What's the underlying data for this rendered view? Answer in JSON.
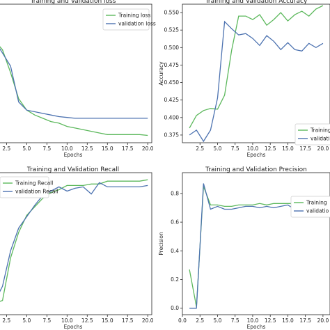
{
  "chart_data": [
    {
      "type": "line",
      "title": "Training and Validation loss",
      "xlabel": "Epochs",
      "ylabel": "",
      "xlim": [
        1,
        20.5
      ],
      "ylim": [
        0.15,
        1.0
      ],
      "xticks": [
        2.5,
        5.0,
        7.5,
        10.0,
        12.5,
        15.0,
        17.5,
        20.0
      ],
      "xtick_labels": [
        "2.5",
        "5.0",
        "7.5",
        "10.0",
        "12.5",
        "15.0",
        "17.5",
        "20.0"
      ],
      "yticks": [],
      "ytick_labels": [],
      "legend_position": "top-right",
      "series": [
        {
          "name": "Training loss",
          "color": "#5cb85c",
          "x": [
            1,
            2,
            3,
            4,
            5,
            6,
            7,
            8,
            9,
            10,
            11,
            12,
            13,
            14,
            15,
            16,
            17,
            18,
            19,
            20
          ],
          "y": [
            0.78,
            0.72,
            0.58,
            0.42,
            0.35,
            0.32,
            0.3,
            0.28,
            0.27,
            0.25,
            0.24,
            0.23,
            0.22,
            0.21,
            0.2,
            0.2,
            0.2,
            0.2,
            0.2,
            0.195
          ]
        },
        {
          "name": "validation loss",
          "color": "#4c72b0",
          "x": [
            1,
            2,
            3,
            4,
            5,
            6,
            7,
            8,
            9,
            10,
            11,
            12,
            13,
            14,
            15,
            16,
            17,
            18,
            19,
            20
          ],
          "y": [
            0.78,
            0.7,
            0.62,
            0.4,
            0.35,
            0.34,
            0.33,
            0.32,
            0.31,
            0.305,
            0.3,
            0.3,
            0.3,
            0.3,
            0.3,
            0.3,
            0.3,
            0.3,
            0.3,
            0.3
          ]
        }
      ]
    },
    {
      "type": "line",
      "title": "Training and Validation Accuracy",
      "xlabel": "Epochs",
      "ylabel": "Accuracy",
      "xlim": [
        0,
        21
      ],
      "ylim": [
        0.364,
        0.562
      ],
      "xticks": [
        2.5,
        5.0,
        7.5,
        10.0,
        12.5,
        15.0,
        17.5,
        20.0
      ],
      "xtick_labels": [
        "2.5",
        "5.0",
        "7.5",
        "10.0",
        "12.5",
        "15.0",
        "17.5",
        "20.0"
      ],
      "yticks": [
        0.375,
        0.4,
        0.425,
        0.45,
        0.475,
        0.5,
        0.525,
        0.55
      ],
      "ytick_labels": [
        "0.375",
        "0.400",
        "0.425",
        "0.450",
        "0.475",
        "0.500",
        "0.525",
        "0.550"
      ],
      "legend_position": "bottom-right",
      "series": [
        {
          "name": "Training",
          "color": "#5cb85c",
          "x": [
            1,
            2,
            3,
            4,
            5,
            6,
            7,
            8,
            9,
            10,
            11,
            12,
            13,
            14,
            15,
            16,
            17,
            18,
            19,
            20
          ],
          "y": [
            0.385,
            0.403,
            0.41,
            0.413,
            0.412,
            0.432,
            0.496,
            0.545,
            0.545,
            0.54,
            0.547,
            0.532,
            0.54,
            0.55,
            0.538,
            0.547,
            0.552,
            0.545,
            0.555,
            0.56
          ]
        },
        {
          "name": "validatio",
          "color": "#4c72b0",
          "x": [
            1,
            2,
            3,
            4,
            5,
            6,
            7,
            8,
            9,
            10,
            11,
            12,
            13,
            14,
            15,
            16,
            17,
            18,
            19,
            20
          ],
          "y": [
            0.375,
            0.382,
            0.366,
            0.382,
            0.428,
            0.537,
            0.527,
            0.518,
            0.52,
            0.513,
            0.503,
            0.517,
            0.509,
            0.497,
            0.507,
            0.497,
            0.495,
            0.506,
            0.5,
            0.506
          ]
        }
      ]
    },
    {
      "type": "line",
      "title": "Training and Validation Recall",
      "xlabel": "Epochs",
      "ylabel": "",
      "xlim": [
        1,
        20.5
      ],
      "ylim": [
        0.0,
        1.0
      ],
      "xticks": [
        2.5,
        5.0,
        7.5,
        10.0,
        12.5,
        15.0,
        17.5,
        20.0
      ],
      "xtick_labels": [
        "2.5",
        "5.0",
        "7.5",
        "10.0",
        "12.5",
        "15.0",
        "17.5",
        "20.0"
      ],
      "yticks": [],
      "ytick_labels": [],
      "legend_position": "top-left",
      "series": [
        {
          "name": "Training Recall",
          "color": "#5cb85c",
          "x": [
            1,
            2,
            3,
            4,
            5,
            6,
            7,
            8,
            9,
            10,
            11,
            12,
            13,
            14,
            15,
            16,
            17,
            18,
            19,
            20
          ],
          "y": [
            0.08,
            0.1,
            0.4,
            0.58,
            0.7,
            0.76,
            0.82,
            0.86,
            0.88,
            0.91,
            0.91,
            0.91,
            0.92,
            0.92,
            0.94,
            0.94,
            0.94,
            0.94,
            0.94,
            0.95
          ]
        },
        {
          "name": "validation Recall",
          "color": "#4c72b0",
          "x": [
            1,
            2,
            3,
            4,
            5,
            6,
            7,
            8,
            9,
            10,
            11,
            12,
            13,
            14,
            15,
            16,
            17,
            18,
            19,
            20
          ],
          "y": [
            0.09,
            0.2,
            0.45,
            0.61,
            0.69,
            0.77,
            0.84,
            0.87,
            0.9,
            0.87,
            0.89,
            0.9,
            0.85,
            0.93,
            0.9,
            0.9,
            0.9,
            0.9,
            0.9,
            0.91
          ]
        }
      ]
    },
    {
      "type": "line",
      "title": "Training and Validation Precision",
      "xlabel": "Epochs",
      "ylabel": "Precision",
      "xlim": [
        0,
        21
      ],
      "ylim": [
        -0.045,
        0.945
      ],
      "xticks": [
        0,
        2.5,
        5.0,
        7.5,
        10.0,
        12.5,
        15.0,
        17.5,
        20.0
      ],
      "xtick_labels": [
        "0.0",
        "2.5",
        "5.0",
        "7.5",
        "10.0",
        "12.5",
        "15.0",
        "17.5",
        "20.0"
      ],
      "yticks": [
        0,
        0.2,
        0.4,
        0.6,
        0.8
      ],
      "ytick_labels": [
        "0.0",
        "0.2",
        "0.4",
        "0.6",
        "0.8"
      ],
      "legend_position": "top-right",
      "series": [
        {
          "name": "Training",
          "color": "#5cb85c",
          "x": [
            1,
            2,
            3,
            4,
            5,
            6,
            7,
            8,
            9,
            10,
            11,
            12,
            13,
            14,
            15,
            16,
            17,
            18,
            19,
            20
          ],
          "y": [
            0.27,
            0.01,
            0.85,
            0.72,
            0.72,
            0.71,
            0.71,
            0.72,
            0.72,
            0.72,
            0.73,
            0.72,
            0.73,
            0.73,
            0.73,
            0.73,
            0.74,
            0.74,
            0.74,
            0.74
          ]
        },
        {
          "name": "validatio",
          "color": "#4c72b0",
          "x": [
            1,
            2,
            3,
            4,
            5,
            6,
            7,
            8,
            9,
            10,
            11,
            12,
            13,
            14,
            15,
            16,
            17,
            18,
            19,
            20
          ],
          "y": [
            0.0,
            0.0,
            0.87,
            0.69,
            0.71,
            0.69,
            0.69,
            0.7,
            0.71,
            0.71,
            0.7,
            0.71,
            0.7,
            0.71,
            0.72,
            0.69,
            0.71,
            0.71,
            0.71,
            0.71
          ]
        }
      ]
    }
  ]
}
